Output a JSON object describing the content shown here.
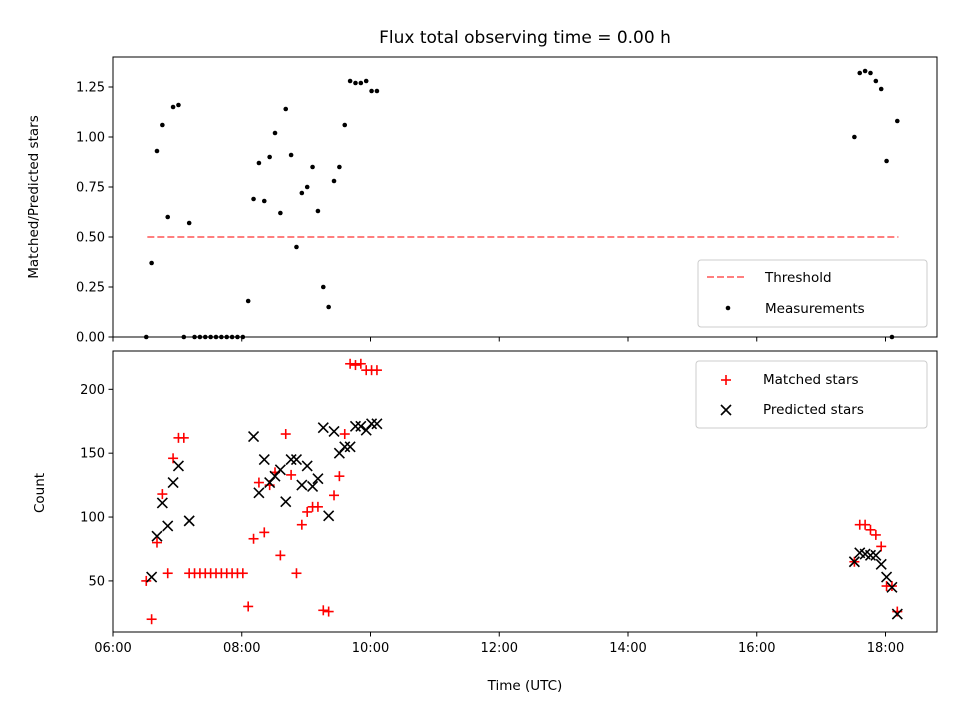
{
  "chart_data": [
    {
      "type": "scatter",
      "title": "Flux total observing time = 0.00 h",
      "xlabel": "",
      "ylabel": "Matched/Predicted stars",
      "xlim": [
        "06:00",
        "18:48"
      ],
      "ylim": [
        0,
        1.4
      ],
      "x_ticks": [
        "06:00",
        "08:00",
        "10:00",
        "12:00",
        "14:00",
        "16:00",
        "18:00"
      ],
      "y_ticks": [
        "0.00",
        "0.25",
        "0.50",
        "0.75",
        "1.00",
        "1.25"
      ],
      "grid": false,
      "legend_position": "lower-right",
      "legend": [
        "Threshold",
        "Measurements"
      ],
      "colors": {
        "threshold": "#ff7f7f",
        "measurements": "#000000"
      },
      "threshold": {
        "name": "Threshold",
        "y": 0.5,
        "x_range": [
          "06:32",
          "18:12"
        ]
      },
      "measurements": {
        "name": "Measurements",
        "x": [
          "06:31",
          "06:36",
          "06:41",
          "06:46",
          "06:51",
          "06:56",
          "07:01",
          "07:06",
          "07:11",
          "07:16",
          "07:21",
          "07:26",
          "07:31",
          "07:36",
          "07:41",
          "07:46",
          "07:51",
          "07:56",
          "08:01",
          "08:06",
          "08:11",
          "08:16",
          "08:21",
          "08:26",
          "08:31",
          "08:36",
          "08:41",
          "08:46",
          "08:51",
          "08:56",
          "09:01",
          "09:06",
          "09:11",
          "09:16",
          "09:21",
          "09:26",
          "09:31",
          "09:36",
          "09:41",
          "09:46",
          "09:51",
          "09:56",
          "10:01",
          "10:06",
          "17:31",
          "17:36",
          "17:41",
          "17:46",
          "17:51",
          "17:56",
          "18:01",
          "18:06",
          "18:11"
        ],
        "y": [
          0.0,
          0.37,
          0.93,
          1.06,
          0.6,
          1.15,
          1.16,
          0.0,
          0.57,
          0.0,
          0.0,
          0.0,
          0.0,
          0.0,
          0.0,
          0.0,
          0.0,
          0.0,
          0.0,
          0.18,
          0.69,
          0.87,
          0.68,
          0.9,
          1.02,
          0.62,
          1.14,
          0.91,
          0.45,
          0.72,
          0.75,
          0.85,
          0.63,
          0.25,
          0.15,
          0.78,
          0.85,
          1.06,
          1.28,
          1.27,
          1.27,
          1.28,
          1.23,
          1.23,
          1.0,
          1.32,
          1.33,
          1.32,
          1.28,
          1.24,
          0.88,
          0.0,
          1.08
        ]
      }
    },
    {
      "type": "scatter",
      "title": "",
      "xlabel": "Time (UTC)",
      "ylabel": "Count",
      "xlim": [
        "06:00",
        "18:48"
      ],
      "ylim": [
        10,
        230
      ],
      "x_ticks": [
        "06:00",
        "08:00",
        "10:00",
        "12:00",
        "14:00",
        "16:00",
        "18:00"
      ],
      "y_ticks": [
        "50",
        "100",
        "150",
        "200"
      ],
      "grid": false,
      "legend_position": "upper-right",
      "legend": [
        "Matched stars",
        "Predicted stars"
      ],
      "colors": {
        "matched": "#ff0000",
        "predicted": "#000000"
      },
      "series": [
        {
          "name": "Matched stars",
          "marker": "+",
          "x": [
            "06:31",
            "06:36",
            "06:41",
            "06:46",
            "06:51",
            "06:56",
            "07:01",
            "07:06",
            "07:11",
            "07:16",
            "07:21",
            "07:26",
            "07:31",
            "07:36",
            "07:41",
            "07:46",
            "07:51",
            "07:56",
            "08:01",
            "08:06",
            "08:11",
            "08:16",
            "08:21",
            "08:26",
            "08:31",
            "08:36",
            "08:41",
            "08:46",
            "08:51",
            "08:56",
            "09:01",
            "09:06",
            "09:11",
            "09:16",
            "09:21",
            "09:26",
            "09:31",
            "09:36",
            "09:41",
            "09:46",
            "09:51",
            "09:56",
            "10:01",
            "10:06",
            "17:31",
            "17:36",
            "17:41",
            "17:46",
            "17:51",
            "17:56",
            "18:01",
            "18:06",
            "18:11"
          ],
          "y": [
            50,
            20,
            80,
            118,
            56,
            146,
            162,
            162,
            56,
            56,
            56,
            56,
            56,
            56,
            56,
            56,
            56,
            56,
            56,
            30,
            83,
            127,
            88,
            125,
            135,
            70,
            165,
            133,
            56,
            94,
            104,
            108,
            108,
            27,
            26,
            117,
            132,
            165,
            220,
            219,
            220,
            215,
            215,
            215,
            65,
            94,
            94,
            90,
            86,
            77,
            46,
            46,
            26
          ]
        },
        {
          "name": "Predicted stars",
          "marker": "x",
          "x": [
            "06:36",
            "06:41",
            "06:46",
            "06:51",
            "06:56",
            "07:01",
            "07:11",
            "08:11",
            "08:16",
            "08:21",
            "08:26",
            "08:31",
            "08:36",
            "08:41",
            "08:46",
            "08:51",
            "08:56",
            "09:01",
            "09:06",
            "09:11",
            "09:16",
            "09:21",
            "09:26",
            "09:31",
            "09:36",
            "09:41",
            "09:46",
            "09:51",
            "09:56",
            "10:01",
            "10:06",
            "17:31",
            "17:36",
            "17:41",
            "17:46",
            "17:51",
            "17:56",
            "18:01",
            "18:06",
            "18:11"
          ],
          "y": [
            53,
            85,
            111,
            93,
            127,
            140,
            97,
            163,
            119,
            145,
            127,
            132,
            137,
            112,
            145,
            145,
            125,
            140,
            124,
            130,
            170,
            101,
            167,
            150,
            155,
            155,
            171,
            171,
            168,
            173,
            173,
            65,
            72,
            71,
            70,
            70,
            63,
            53,
            45,
            24
          ]
        }
      ]
    }
  ]
}
